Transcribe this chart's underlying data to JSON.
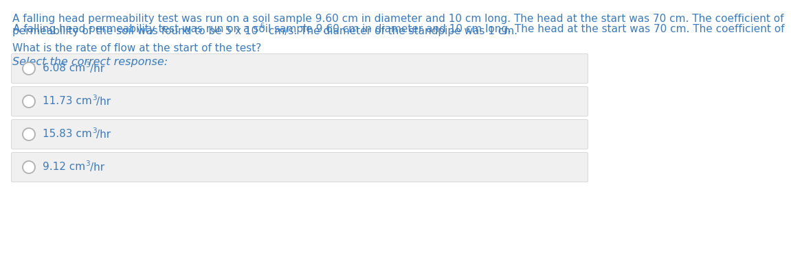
{
  "background_color": "#ffffff",
  "paragraph_color": "#3a7bbf",
  "question_color": "#3a7bbf",
  "select_color": "#3a7bbf",
  "options_color": "#3a7bbf",
  "option_box_color": "#f0f0f0",
  "option_box_edge_color": "#d8d8d8",
  "circle_facecolor": "#ffffff",
  "circle_edgecolor": "#b0b0b0",
  "line1": "A falling head permeability test was run on a soil sample 9.60 cm in diameter and 10 cm long. The head at the start was 70 cm. The coefficient of",
  "line2_pre": "permeability of the soil was found to be 5 x 10",
  "line2_sup": "-6",
  "line2_post": " cm/s. The diameter of the standpipe was 1 cm.",
  "question": "What is the rate of flow at the start of the test?",
  "select": "Select the correct response:",
  "options": [
    "6.08",
    "11.73",
    "15.83",
    "9.12"
  ],
  "option_suffix_base": " cm",
  "option_suffix_sup": "3",
  "option_suffix_end": "/hr",
  "font_size": 11,
  "font_size_select": 11.5,
  "font_size_super": 7.5
}
